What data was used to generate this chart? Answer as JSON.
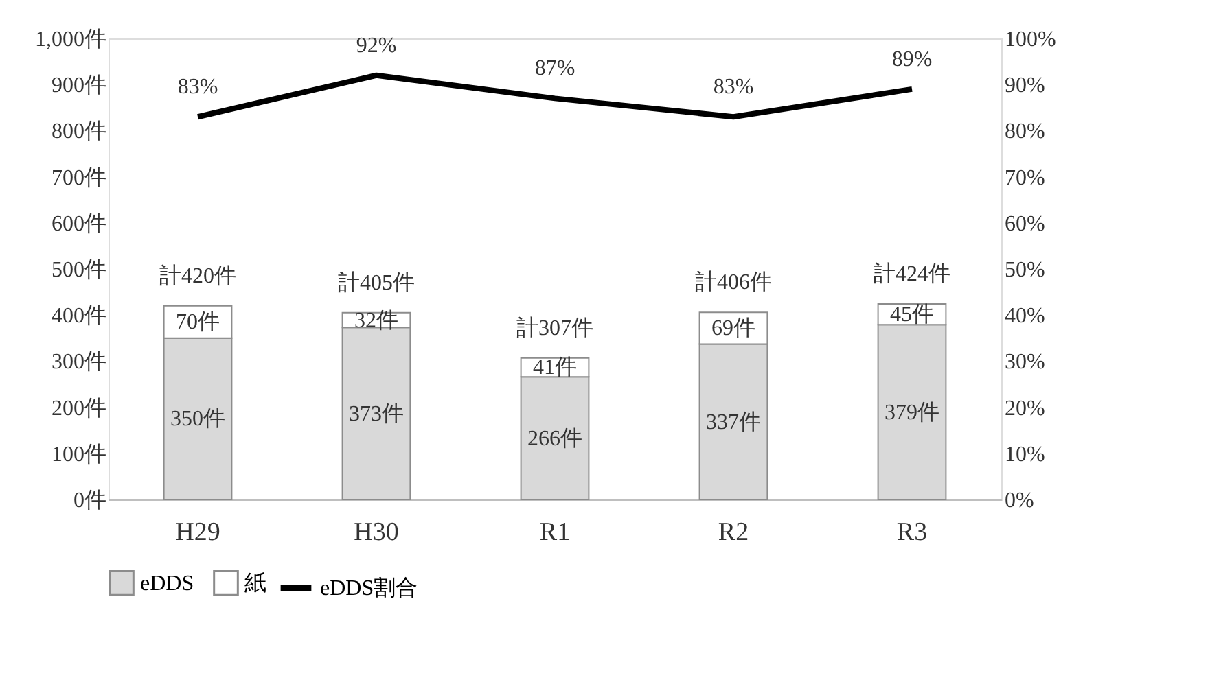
{
  "chart_data": {
    "type": "bar",
    "stacked": true,
    "categories": [
      "H29",
      "H30",
      "R1",
      "R2",
      "R3"
    ],
    "series": [
      {
        "name": "eDDS",
        "type": "bar",
        "color": "#d9d9d9",
        "values": [
          350,
          373,
          266,
          337,
          379
        ],
        "value_labels": [
          "350件",
          "373件",
          "266件",
          "337件",
          "379件"
        ]
      },
      {
        "name": "紙",
        "type": "bar",
        "color": "#ffffff",
        "values": [
          70,
          32,
          41,
          69,
          45
        ],
        "value_labels": [
          "70件",
          "32件",
          "41件",
          "69件",
          "45件"
        ]
      },
      {
        "name": "eDDS割合",
        "type": "line",
        "axis": "y2",
        "color": "#000000",
        "values": [
          83,
          92,
          87,
          83,
          89
        ],
        "value_labels": [
          "83%",
          "92%",
          "87%",
          "83%",
          "89%"
        ]
      }
    ],
    "totals": [
      "計420件",
      "計405件",
      "計307件",
      "計406件",
      "計424件"
    ],
    "ylim": [
      0,
      1000
    ],
    "yticks": [
      {
        "value": 0,
        "label": "0件"
      },
      {
        "value": 100,
        "label": "100件"
      },
      {
        "value": 200,
        "label": "200件"
      },
      {
        "value": 300,
        "label": "300件"
      },
      {
        "value": 400,
        "label": "400件"
      },
      {
        "value": 500,
        "label": "500件"
      },
      {
        "value": 600,
        "label": "600件"
      },
      {
        "value": 700,
        "label": "700件"
      },
      {
        "value": 800,
        "label": "800件"
      },
      {
        "value": 900,
        "label": "900件"
      },
      {
        "value": 1000,
        "label": "1,000件"
      }
    ],
    "y2lim": [
      0,
      100
    ],
    "y2ticks": [
      {
        "value": 0,
        "label": "0%"
      },
      {
        "value": 10,
        "label": "10%"
      },
      {
        "value": 20,
        "label": "20%"
      },
      {
        "value": 30,
        "label": "30%"
      },
      {
        "value": 40,
        "label": "40%"
      },
      {
        "value": 50,
        "label": "50%"
      },
      {
        "value": 60,
        "label": "60%"
      },
      {
        "value": 70,
        "label": "70%"
      },
      {
        "value": 80,
        "label": "80%"
      },
      {
        "value": 90,
        "label": "90%"
      },
      {
        "value": 100,
        "label": "100%"
      }
    ],
    "grid": false,
    "legend": "bottom",
    "marker": "none",
    "line_style": "solid"
  }
}
